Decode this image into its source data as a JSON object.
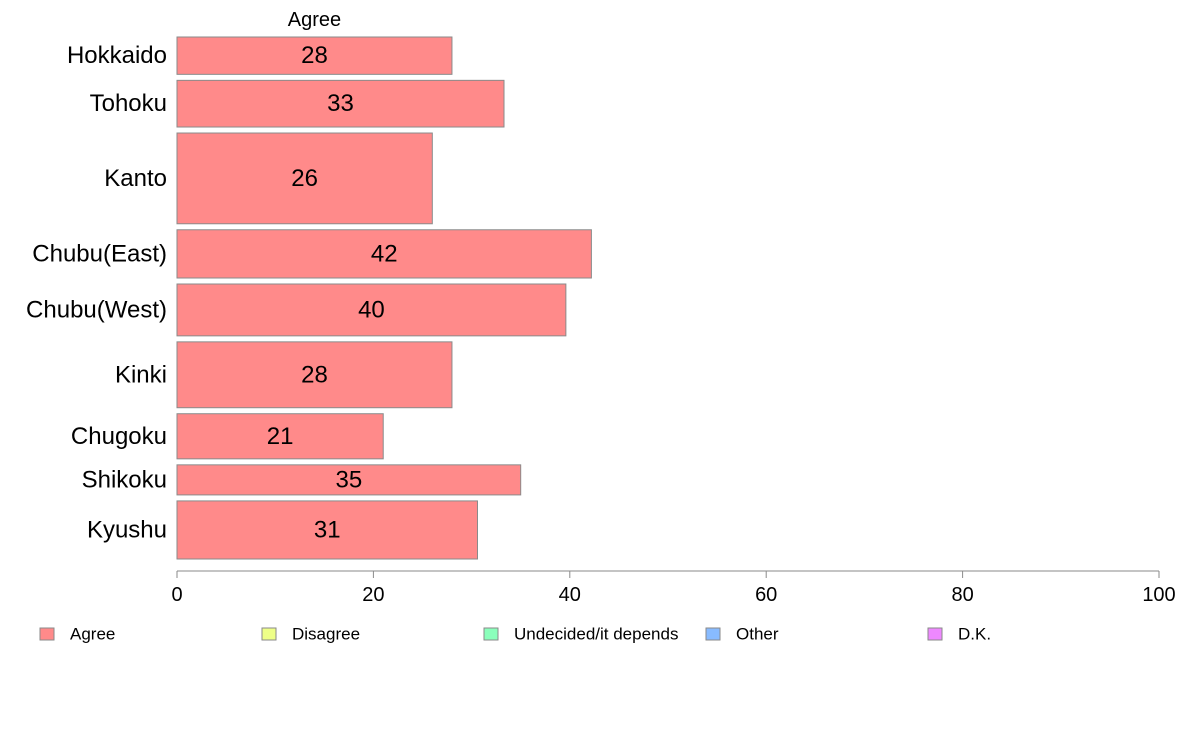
{
  "chart_data": {
    "type": "bar",
    "orientation": "horizontal",
    "stacked": true,
    "variable_width": true,
    "series_title": "Agree",
    "categories": [
      "Hokkaido",
      "Tohoku",
      "Kanto",
      "Chubu(East)",
      "Chubu(West)",
      "Kinki",
      "Chugoku",
      "Shikoku",
      "Kyushu"
    ],
    "relative_widths": [
      0.72,
      0.9,
      1.75,
      0.93,
      1.0,
      1.27,
      0.87,
      0.58,
      1.12
    ],
    "series": [
      {
        "name": "Agree",
        "color": "#ff8a8a",
        "values": [
          28,
          33.3,
          26,
          42.2,
          39.6,
          28,
          21,
          35,
          30.6
        ],
        "labels": [
          "28",
          "33",
          "26",
          "42",
          "40",
          "28",
          "21",
          "35",
          "31"
        ]
      }
    ],
    "xlim": [
      0,
      100
    ],
    "xticks": [
      "0",
      "20",
      "40",
      "60",
      "80",
      "100"
    ],
    "grid": false,
    "legend": {
      "position": "bottom",
      "entries": [
        {
          "label": "Agree",
          "color": "#ff8a8a"
        },
        {
          "label": "Disagree",
          "color": "#eeff88"
        },
        {
          "label": "Undecided/it depends",
          "color": "#8affbb"
        },
        {
          "label": "Other",
          "color": "#88bbff"
        },
        {
          "label": "D.K.",
          "color": "#ee88ff"
        }
      ]
    }
  }
}
